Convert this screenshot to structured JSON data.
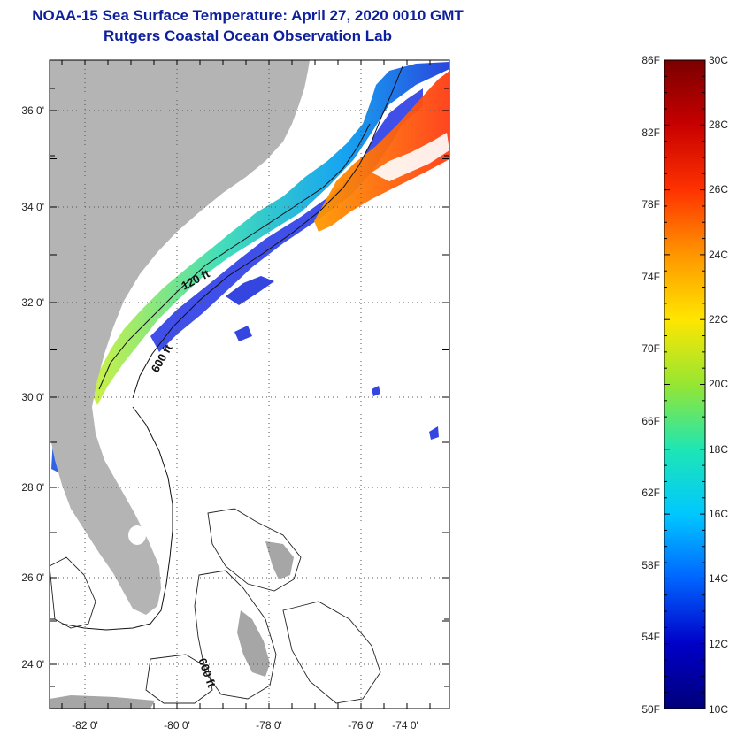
{
  "title": {
    "line1": "NOAA-15 Sea Surface Temperature:  April 27, 2020 0010 GMT",
    "line2": "Rutgers Coastal Ocean Observation Lab"
  },
  "map": {
    "lat_ticks": [
      "36 0'",
      "34 0'",
      "32 0'",
      "30 0'",
      "28 0'",
      "26 0'",
      "24 0'"
    ],
    "lon_ticks": [
      "-82 0'",
      "-80 0'",
      "-78 0'",
      "-76 0'",
      "-74 0'"
    ],
    "contour_labels": [
      "120 ft",
      "600 ft",
      "600 ft"
    ],
    "colors": {
      "land": "#b4b4b4",
      "ocean_nodata": "#ffffff",
      "gulfstream": "#ff5a10",
      "shelf_cold": "#1a1adc"
    }
  },
  "colorbar": {
    "fahrenheit": [
      "86F",
      "82F",
      "78F",
      "74F",
      "70F",
      "66F",
      "62F",
      "58F",
      "54F",
      "50F"
    ],
    "celsius": [
      "30C",
      "28C",
      "26C",
      "24C",
      "22C",
      "20C",
      "18C",
      "16C",
      "14C",
      "12C",
      "10C"
    ],
    "scale_colors": [
      "#7a0000",
      "#c80000",
      "#ff3200",
      "#ff9600",
      "#ffe600",
      "#96e632",
      "#1ee6b4",
      "#00c8ff",
      "#0064ff",
      "#0000c8",
      "#00007a"
    ]
  }
}
